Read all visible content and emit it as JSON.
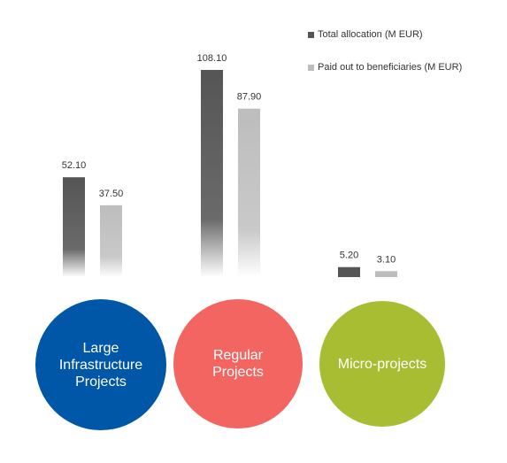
{
  "chart_data": {
    "type": "bar",
    "categories": [
      "Large Infrastructure Projects",
      "Regular Projects",
      "Micro-projects"
    ],
    "series": [
      {
        "name": "Total allocation (M EUR)",
        "values": [
          52.1,
          108.1,
          5.2
        ],
        "color": "#555555"
      },
      {
        "name": "Paid out to beneficiaries (M EUR)",
        "values": [
          37.5,
          87.9,
          3.1
        ],
        "color": "#bdbdbd"
      }
    ],
    "value_labels": [
      [
        "52.10",
        "108.10",
        "5.20"
      ],
      [
        "37.50",
        "87.90",
        "3.10"
      ]
    ],
    "ylim": [
      0,
      108.1
    ],
    "grid": false,
    "legend_position": "top-right"
  },
  "category_circles": [
    {
      "label": "Large\nInfrastructure\nProjects",
      "color": "#0057a8"
    },
    {
      "label": "Regular\nProjects",
      "color": "#f26560"
    },
    {
      "label": "Micro-projects",
      "color": "#a8bd32"
    }
  ]
}
